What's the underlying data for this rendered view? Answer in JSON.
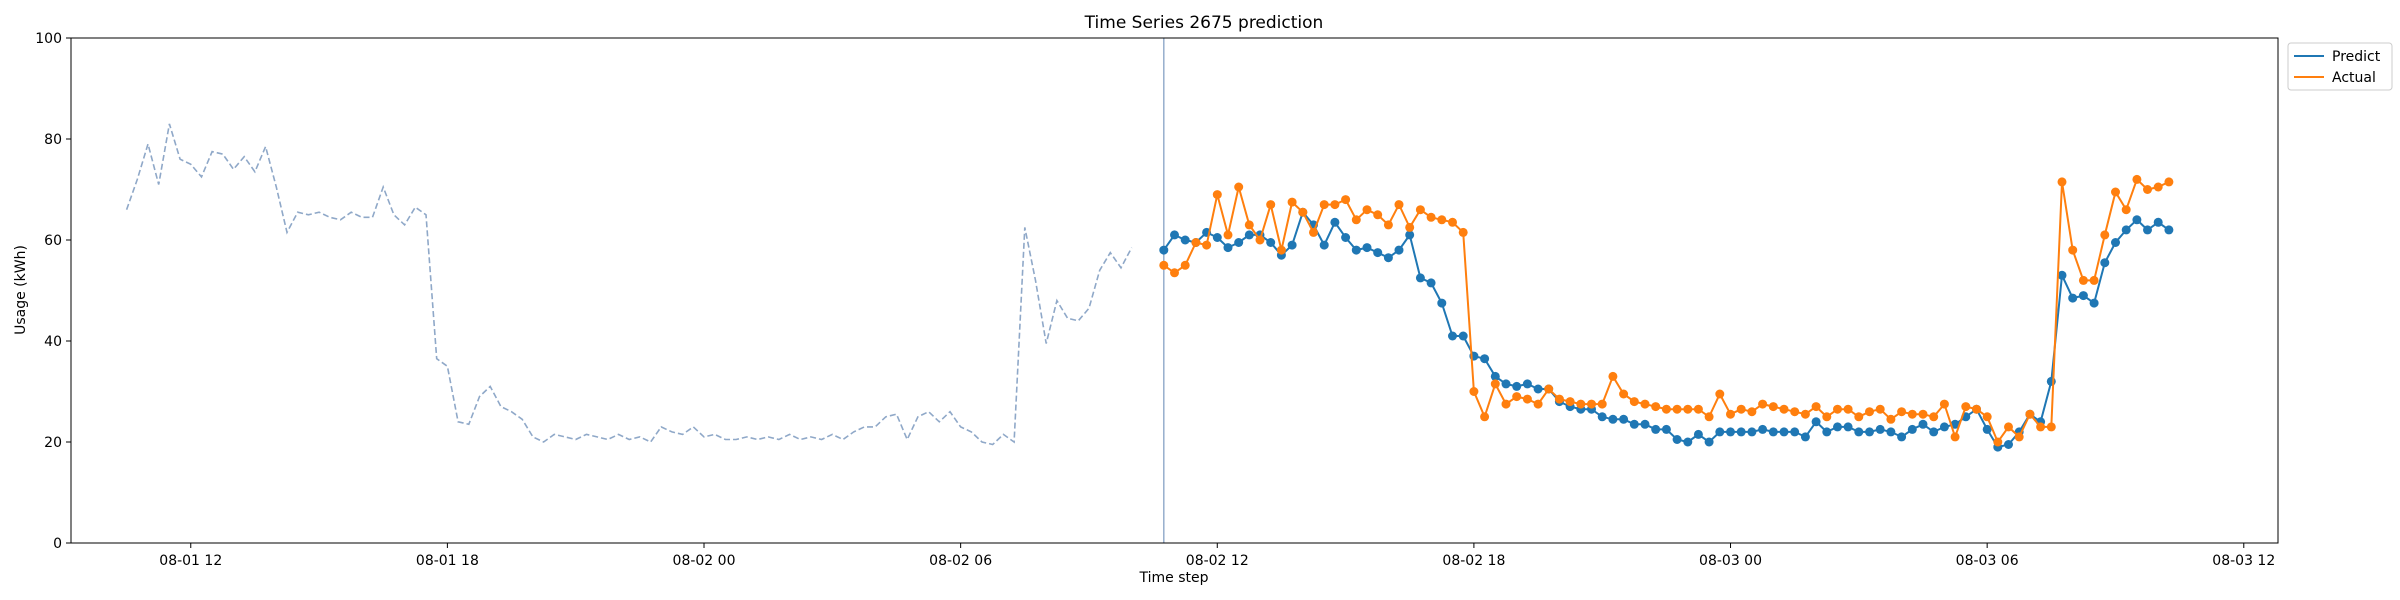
{
  "chart_data": {
    "type": "line",
    "title": "Time Series 2675 prediction",
    "xlabel": "Time step",
    "ylabel": "Usage (kWh)",
    "ylim": [
      0,
      100
    ],
    "yticks": [
      "0",
      "20",
      "40",
      "60",
      "80",
      "100"
    ],
    "xlim": [
      "2024-08-01 09:12",
      "2024-08-03 12:48"
    ],
    "xticks": [
      {
        "t": "2024-08-01 12:00",
        "label": "08-01 12"
      },
      {
        "t": "2024-08-01 18:00",
        "label": "08-01 18"
      },
      {
        "t": "2024-08-02 00:00",
        "label": "08-02 00"
      },
      {
        "t": "2024-08-02 06:00",
        "label": "08-02 06"
      },
      {
        "t": "2024-08-02 12:00",
        "label": "08-02 12"
      },
      {
        "t": "2024-08-02 18:00",
        "label": "08-02 18"
      },
      {
        "t": "2024-08-03 00:00",
        "label": "08-03 00"
      },
      {
        "t": "2024-08-03 06:00",
        "label": "08-03 06"
      },
      {
        "t": "2024-08-03 12:00",
        "label": "08-03 12"
      }
    ],
    "interval_minutes": 15,
    "history_start": "2024-08-01 10:30",
    "forecast_start": "2024-08-02 10:45",
    "split_marker": "2024-08-02 10:45",
    "grid": false,
    "legend": "upper right, outside plot",
    "colors": {
      "history": "#8fa8c8",
      "predict": "#1f77b4",
      "actual": "#ff7f0e",
      "split": "#8fa8c8"
    },
    "history": [
      66,
      72,
      79,
      71,
      83,
      76,
      75,
      72.5,
      77.5,
      77,
      74,
      76.5,
      73.5,
      78.5,
      70.5,
      61.5,
      65.5,
      65,
      65.5,
      64.5,
      64,
      65.5,
      64.5,
      64.5,
      70.5,
      65,
      63,
      66.5,
      65,
      36.5,
      35,
      24,
      23.5,
      29,
      31,
      27,
      26,
      24.5,
      21,
      20,
      21.5,
      21,
      20.5,
      21.5,
      21,
      20.5,
      21.5,
      20.5,
      21,
      20,
      23,
      22,
      21.5,
      23,
      21,
      21.5,
      20.5,
      20.5,
      21,
      20.5,
      21,
      20.5,
      21.5,
      20.5,
      21,
      20.5,
      21.5,
      20.5,
      22,
      23,
      23,
      25,
      25.5,
      20.5,
      25,
      26,
      24,
      26,
      23,
      22,
      20,
      19.5,
      21.5,
      20,
      62.5,
      52,
      39.5,
      48,
      44.5,
      44,
      46.5,
      54,
      57.5,
      54.5,
      58.5
    ],
    "series": [
      {
        "name": "Predict",
        "values": [
          58,
          61,
          60,
          59.5,
          61.5,
          60.5,
          58.5,
          59.5,
          61,
          61,
          59.5,
          57,
          59,
          65.5,
          63,
          59,
          63.5,
          60.5,
          58,
          58.5,
          57.5,
          56.5,
          58,
          61,
          52.5,
          51.5,
          47.5,
          41,
          41,
          37,
          36.5,
          33,
          31.5,
          31,
          31.5,
          30.5,
          30.5,
          28,
          27,
          26.5,
          26.5,
          25,
          24.5,
          24.5,
          23.5,
          23.5,
          22.5,
          22.5,
          20.5,
          20,
          21.5,
          20,
          22,
          22,
          22,
          22,
          22.5,
          22,
          22,
          22,
          21,
          24,
          22,
          23,
          23,
          22,
          22,
          22.5,
          22,
          21,
          22.5,
          23.5,
          22,
          23,
          23.5,
          25,
          26.5,
          22.5,
          19,
          19.5,
          22,
          25.5,
          24,
          32,
          53,
          48.5,
          49,
          47.5,
          55.5,
          59.5,
          62,
          64,
          62,
          63.5,
          62
        ]
      },
      {
        "name": "Actual",
        "values": [
          55,
          53.5,
          55,
          59.5,
          59,
          69,
          61,
          70.5,
          63,
          60,
          67,
          58,
          67.5,
          65.5,
          61.5,
          67,
          67,
          68,
          64,
          66,
          65,
          63,
          67,
          62.5,
          66,
          64.5,
          64,
          63.5,
          61.5,
          30,
          25,
          31.5,
          27.5,
          29,
          28.5,
          27.5,
          30.5,
          28.5,
          28,
          27.5,
          27.5,
          27.5,
          33,
          29.5,
          28,
          27.5,
          27,
          26.5,
          26.5,
          26.5,
          26.5,
          25,
          29.5,
          25.5,
          26.5,
          26,
          27.5,
          27,
          26.5,
          26,
          25.5,
          27,
          25,
          26.5,
          26.5,
          25,
          26,
          26.5,
          24.5,
          26,
          25.5,
          25.5,
          25,
          27.5,
          21,
          27,
          26.5,
          25,
          20,
          23,
          21,
          25.5,
          23,
          23,
          71.5,
          58,
          52,
          52,
          61,
          69.5,
          66,
          72,
          70,
          70.5,
          71.5
        ]
      }
    ]
  }
}
